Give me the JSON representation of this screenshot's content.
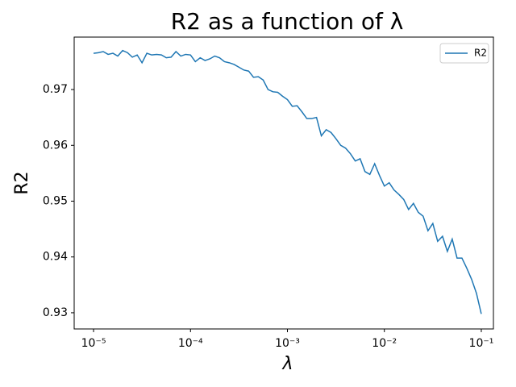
{
  "chart_data": {
    "type": "line",
    "title": "R2 as a function of λ",
    "x_label": "λ",
    "y_label": "R2",
    "x_scale": "log",
    "legend": "upper right",
    "x": [
      1e-05,
      1.122e-05,
      1.259e-05,
      1.413e-05,
      1.585e-05,
      1.778e-05,
      1.995e-05,
      2.239e-05,
      2.512e-05,
      2.818e-05,
      3.162e-05,
      3.548e-05,
      3.981e-05,
      4.467e-05,
      5.012e-05,
      5.623e-05,
      6.31e-05,
      7.079e-05,
      7.943e-05,
      8.913e-05,
      0.0001,
      0.0001122,
      0.0001259,
      0.0001413,
      0.0001585,
      0.0001778,
      0.0001995,
      0.0002239,
      0.0002512,
      0.0002818,
      0.0003162,
      0.0003548,
      0.0003981,
      0.0004467,
      0.0005012,
      0.0005623,
      0.000631,
      0.0007079,
      0.0007943,
      0.0008913,
      0.001,
      0.001122,
      0.001259,
      0.001413,
      0.001585,
      0.001778,
      0.001995,
      0.002239,
      0.002512,
      0.002818,
      0.003162,
      0.003548,
      0.003981,
      0.004467,
      0.005012,
      0.005623,
      0.00631,
      0.007079,
      0.007943,
      0.008913,
      0.01,
      0.01122,
      0.01259,
      0.01413,
      0.01585,
      0.01778,
      0.01995,
      0.02239,
      0.02512,
      0.02818,
      0.03162,
      0.03548,
      0.03981,
      0.04467,
      0.05012,
      0.05623,
      0.0631,
      0.07079,
      0.07943,
      0.08913,
      0.1
    ],
    "series": [
      {
        "name": "R2",
        "color": "#1f77b4",
        "values": [
          0.9765,
          0.9766,
          0.9768,
          0.9763,
          0.9765,
          0.976,
          0.977,
          0.9766,
          0.9758,
          0.9762,
          0.9748,
          0.9765,
          0.9762,
          0.9763,
          0.9762,
          0.9757,
          0.9758,
          0.9768,
          0.976,
          0.9763,
          0.9762,
          0.975,
          0.9757,
          0.9752,
          0.9755,
          0.976,
          0.9757,
          0.975,
          0.9748,
          0.9745,
          0.974,
          0.9735,
          0.9733,
          0.9722,
          0.9723,
          0.9717,
          0.97,
          0.9696,
          0.9695,
          0.9688,
          0.9682,
          0.967,
          0.9671,
          0.966,
          0.9648,
          0.9648,
          0.965,
          0.9617,
          0.9628,
          0.9623,
          0.9612,
          0.96,
          0.9595,
          0.9585,
          0.9572,
          0.9576,
          0.9553,
          0.9548,
          0.9567,
          0.9546,
          0.9527,
          0.9533,
          0.952,
          0.9512,
          0.9503,
          0.9485,
          0.9496,
          0.948,
          0.9473,
          0.9447,
          0.946,
          0.9428,
          0.9437,
          0.941,
          0.9432,
          0.9398,
          0.9398,
          0.938,
          0.936,
          0.9335,
          0.9298
        ]
      }
    ],
    "xlim": [
      6.31e-06,
      0.1334
    ],
    "ylim": [
      0.9271,
      0.9794
    ],
    "xticks": [
      {
        "value": 1e-05,
        "label": "10⁻⁵"
      },
      {
        "value": 0.0001,
        "label": "10⁻⁴"
      },
      {
        "value": 0.001,
        "label": "10⁻³"
      },
      {
        "value": 0.01,
        "label": "10⁻²"
      },
      {
        "value": 0.1,
        "label": "10⁻¹"
      }
    ],
    "yticks": [
      0.93,
      0.94,
      0.95,
      0.96,
      0.97
    ]
  }
}
